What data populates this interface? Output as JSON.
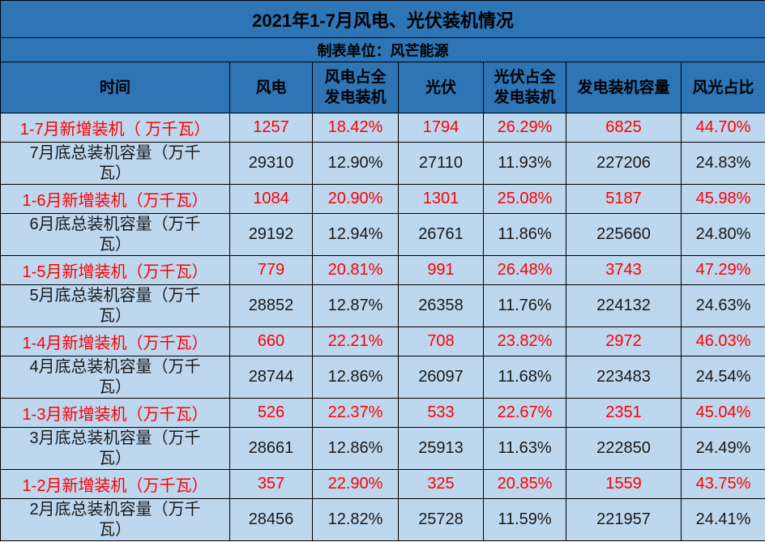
{
  "chart_data": {
    "type": "table",
    "title": "2021年1-7月风电、光伏装机情况",
    "subtitle": "制表单位：风芒能源",
    "columns": [
      "时间",
      "风电",
      "风电占全发电装机",
      "光伏",
      "光伏占全发电装机",
      "发电装机容量",
      "风光占比"
    ],
    "rows": [
      {
        "type": "new",
        "cells": [
          "1-7月新增装机（ 万千瓦）",
          "1257",
          "18.42%",
          "1794",
          "26.29%",
          "6825",
          "44.70%"
        ]
      },
      {
        "type": "total",
        "cells": [
          "7月底总装机容量（万千瓦）",
          "29310",
          "12.90%",
          "27110",
          "11.93%",
          "227206",
          "24.83%"
        ]
      },
      {
        "type": "new",
        "cells": [
          "1-6月新增装机（万千瓦）",
          "1084",
          "20.90%",
          "1301",
          "25.08%",
          "5187",
          "45.98%"
        ]
      },
      {
        "type": "total",
        "cells": [
          "6月底总装机容量（万千瓦）",
          "29192",
          "12.94%",
          "26761",
          "11.86%",
          "225660",
          "24.80%"
        ]
      },
      {
        "type": "new",
        "cells": [
          "1-5月新增装机（万千瓦）",
          "779",
          "20.81%",
          "991",
          "26.48%",
          "3743",
          "47.29%"
        ]
      },
      {
        "type": "total",
        "cells": [
          "5月底总装机容量（万千瓦）",
          "28852",
          "12.87%",
          "26358",
          "11.76%",
          "224132",
          "24.63%"
        ]
      },
      {
        "type": "new",
        "cells": [
          "1-4月新增装机（万千瓦）",
          "660",
          "22.21%",
          "708",
          "23.82%",
          "2972",
          "46.03%"
        ]
      },
      {
        "type": "total",
        "cells": [
          "4月底总装机容量（万千瓦）",
          "28744",
          "12.86%",
          "26097",
          "11.68%",
          "223483",
          "24.54%"
        ]
      },
      {
        "type": "new",
        "cells": [
          "1-3月新增装机（万千瓦）",
          "526",
          "22.37%",
          "533",
          "22.67%",
          "2351",
          "45.04%"
        ]
      },
      {
        "type": "total",
        "cells": [
          "3月底总装机容量（万千瓦）",
          "28661",
          "12.86%",
          "25913",
          "11.63%",
          "222850",
          "24.49%"
        ]
      },
      {
        "type": "new",
        "cells": [
          "1-2月新增装机（万千瓦）",
          "357",
          "22.90%",
          "325",
          "20.85%",
          "1559",
          "43.75%"
        ]
      },
      {
        "type": "total",
        "cells": [
          "2月底总装机容量（万千瓦）",
          "28456",
          "12.82%",
          "25728",
          "11.59%",
          "221957",
          "24.41%"
        ]
      }
    ]
  },
  "colors": {
    "header_bg": "#2E75B6",
    "cell_bg": "#BDD7EE",
    "highlight_red": "#FF0000",
    "border": "#000000"
  }
}
